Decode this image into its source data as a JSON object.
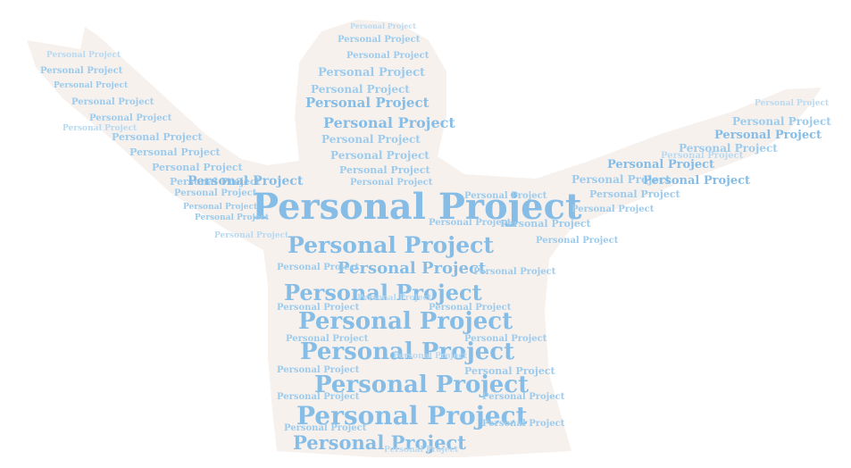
{
  "word_cloud": {
    "phrase": "Personal Project",
    "silhouette_shape": "person-with-raised-arms",
    "colors": {
      "background": "#ffffff",
      "silhouette": "#f7f1ee",
      "text_primary": "#86bde6",
      "text_secondary": "#9ccbec",
      "text_faint": "#b9d9f0"
    }
  }
}
